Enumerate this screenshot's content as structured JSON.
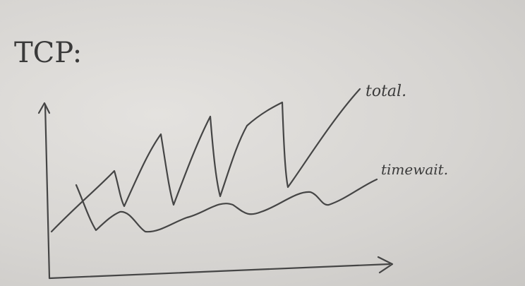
{
  "title": "TCP:",
  "labels": {
    "total": "total.",
    "timewait": "timewait."
  }
}
